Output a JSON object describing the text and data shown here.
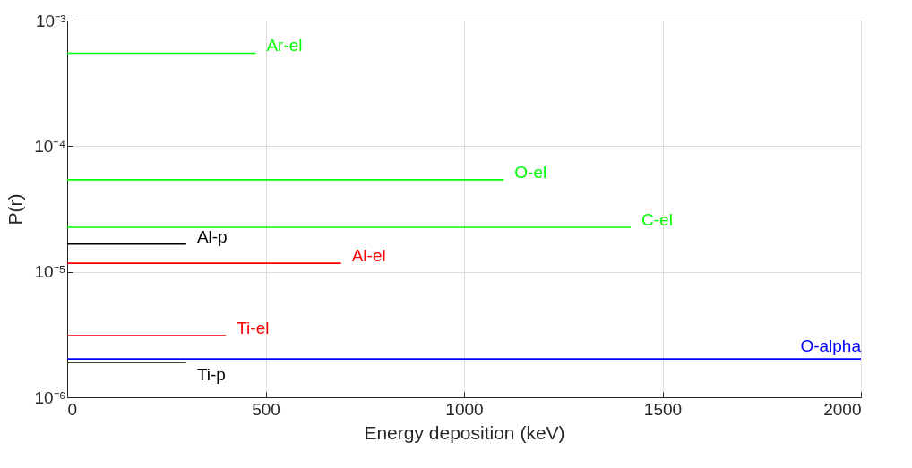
{
  "chart_data": {
    "type": "line",
    "xlabel": "Energy deposition (keV)",
    "ylabel": "P(r)",
    "log": "y",
    "grid": true,
    "marker": "none",
    "line_style": "solid",
    "xlim": [
      0,
      2000
    ],
    "xticks": [
      0,
      500,
      1000,
      1500,
      2000
    ],
    "ylim": [
      1e-06,
      0.001
    ],
    "yticks": [
      {
        "value": 1e-06,
        "label": "10⁻⁶"
      },
      {
        "value": 1e-05,
        "label": "10⁻⁵"
      },
      {
        "value": 0.0001,
        "label": "10⁻⁴"
      },
      {
        "value": 0.001,
        "label": "10⁻³"
      }
    ],
    "series": [
      {
        "name": "Ar-el",
        "color": "#00ff00",
        "x": [
          0,
          475
        ],
        "values": [
          0.00055,
          0.00055
        ]
      },
      {
        "name": "O-el",
        "color": "#00ff00",
        "x": [
          0,
          1100
        ],
        "values": [
          5.4e-05,
          5.4e-05
        ]
      },
      {
        "name": "C-el",
        "color": "#00ff00",
        "x": [
          0,
          1420
        ],
        "values": [
          2.26e-05,
          2.26e-05
        ]
      },
      {
        "name": "Al-p",
        "color": "#000000",
        "x": [
          0,
          300
        ],
        "values": [
          1.66e-05,
          1.66e-05
        ]
      },
      {
        "name": "Al-el",
        "color": "#ff0000",
        "x": [
          0,
          690
        ],
        "values": [
          1.17e-05,
          1.17e-05
        ]
      },
      {
        "name": "Ti-el",
        "color": "#ff0000",
        "x": [
          0,
          400
        ],
        "values": [
          3.1e-06,
          3.1e-06
        ]
      },
      {
        "name": "O-alpha",
        "color": "#0000ff",
        "x": [
          0,
          2000
        ],
        "values": [
          2.02e-06,
          2.02e-06
        ]
      },
      {
        "name": "Ti-p",
        "color": "#000000",
        "x": [
          0,
          300
        ],
        "values": [
          1.9e-06,
          1.9e-06
        ]
      }
    ]
  }
}
